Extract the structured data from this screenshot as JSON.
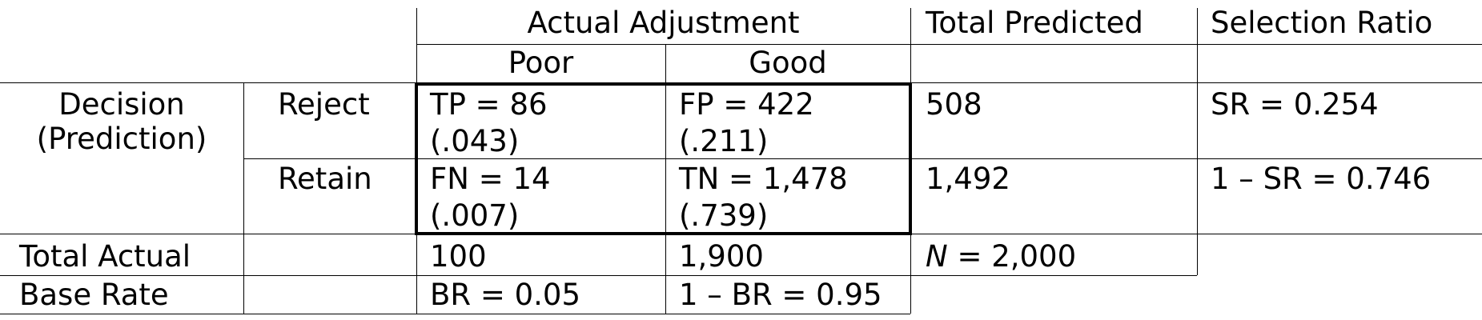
{
  "table": {
    "header": {
      "actual_adjustment": "Actual Adjustment",
      "total_predicted": "Total Predicted",
      "selection_ratio": "Selection Ratio",
      "poor": "Poor",
      "good": "Good"
    },
    "decision_label": {
      "line1": "Decision",
      "line2": "(Prediction)"
    },
    "rows": {
      "reject": {
        "label": "Reject",
        "tp": {
          "count": "TP = 86",
          "prop": "(.043)"
        },
        "fp": {
          "count": "FP = 422",
          "prop": "(.211)"
        },
        "total_predicted": "508",
        "selection_ratio": "SR = 0.254"
      },
      "retain": {
        "label": "Retain",
        "fn": {
          "count": "FN = 14",
          "prop": "(.007)"
        },
        "tn": {
          "count": "TN = 1,478",
          "prop": "(.739)"
        },
        "total_predicted": "1,492",
        "selection_ratio": "1 – SR = 0.746"
      },
      "total_actual": {
        "label": "Total Actual",
        "poor": "100",
        "good": "1,900",
        "n_symbol": "N",
        "n_value": " = 2,000"
      },
      "base_rate": {
        "label": "Base Rate",
        "poor": "BR = 0.05",
        "good": "1 – BR = 0.95"
      }
    }
  }
}
